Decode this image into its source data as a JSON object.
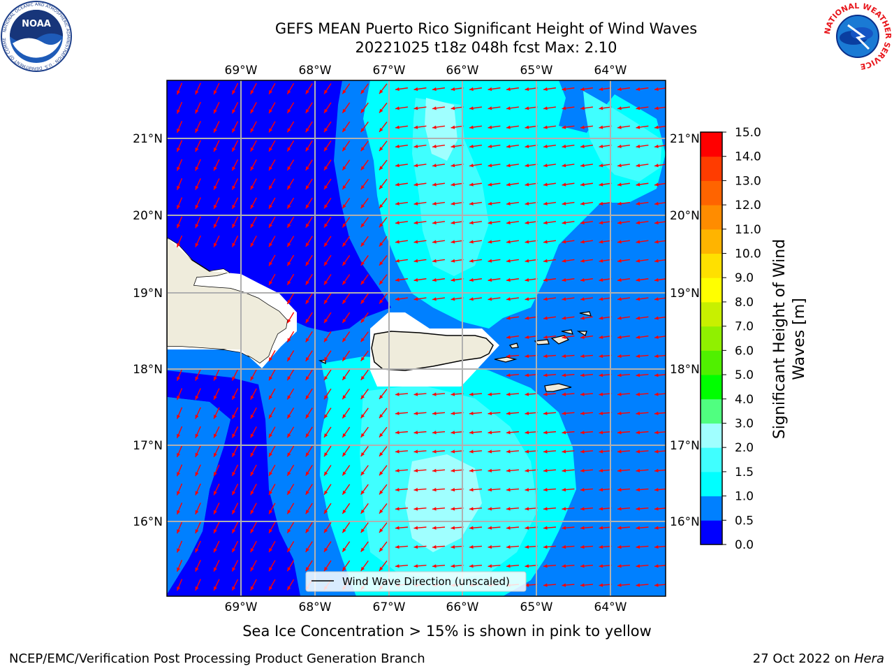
{
  "header": {
    "title_line1": "GEFS MEAN Puerto Rico Significant Height of Wind Waves",
    "title_line2": "20221025 t18z 048h fcst   Max: 2.10"
  },
  "map": {
    "lon_labels": [
      "69°W",
      "68°W",
      "67°W",
      "66°W",
      "65°W",
      "64°W"
    ],
    "lat_labels": [
      "21°N",
      "20°N",
      "19°N",
      "18°N",
      "17°N",
      "16°N"
    ],
    "lon_range": [
      -70.0,
      -63.25
    ],
    "lat_range": [
      15.0,
      21.75
    ],
    "legend_label": "Wind Wave Direction (unscaled)",
    "arrow_color": "#ff0000",
    "land_color": "#efecdc"
  },
  "colorbar": {
    "label_line1": "Significant Height of Wind",
    "label_line2": "Waves [m]",
    "ticks": [
      "15.0",
      "14.0",
      "13.0",
      "12.0",
      "11.0",
      "10.0",
      "9.0",
      "8.0",
      "7.0",
      "6.0",
      "5.0",
      "4.0",
      "3.0",
      "2.0",
      "1.5",
      "1.0",
      "0.5",
      "0.0"
    ],
    "colors_bottom_to_top": [
      "#0000ff",
      "#0080ff",
      "#00ffff",
      "#40ffff",
      "#a0ffff",
      "#50ff80",
      "#00ff00",
      "#50f000",
      "#90f000",
      "#c8f000",
      "#ffff00",
      "#ffe000",
      "#ffb400",
      "#ff8c00",
      "#ff6400",
      "#ff3c00",
      "#ff0000"
    ]
  },
  "note": "Sea Ice Concentration > 15% is shown in pink to yellow",
  "footer": {
    "left": "NCEP/EMC/Verification Post Processing Product Generation Branch",
    "date": "27 Oct 2022 on ",
    "machine": "Hera"
  },
  "logos": {
    "noaa_text": "NOAA",
    "noaa_ring": "NATIONAL OCEANIC AND ATMOSPHERIC ADMINISTRATION · U.S. DEPARTMENT OF COMMERCE",
    "nws_ring": "NATIONAL WEATHER SERVICE"
  }
}
